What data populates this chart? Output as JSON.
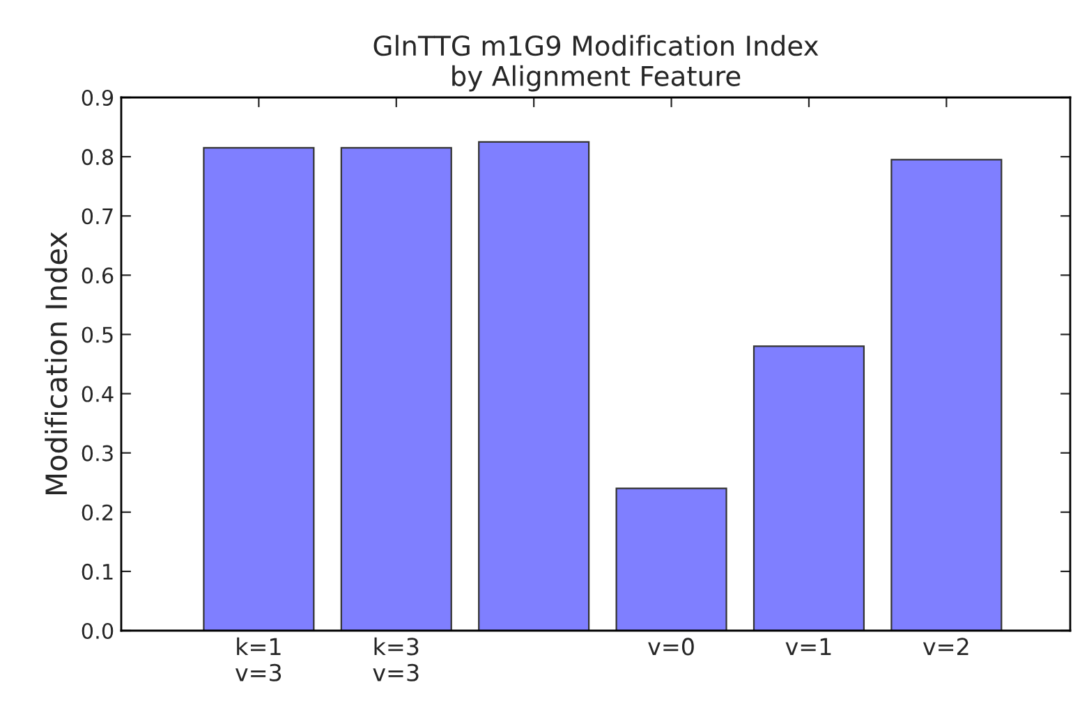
{
  "chart_data": {
    "type": "bar",
    "title": "GlnTTG m1G9 Modification Index\nby Alignment Feature",
    "ylabel": "Modification Index",
    "categories": [
      "k=1\nv=3",
      "k=3\nv=3",
      null,
      "v=0",
      "v=1",
      "v=2"
    ],
    "values": [
      0.815,
      0.815,
      0.825,
      0.24,
      0.48,
      0.795
    ],
    "color": "#7f7fff",
    "ylim": [
      0,
      0.9
    ],
    "yticks": [
      {
        "value": 0,
        "label": "0.0"
      },
      0.1,
      0.2,
      0.3,
      0.4,
      0.5,
      0.6,
      0.7,
      0.8,
      0.9
    ],
    "grid": false,
    "legend": false
  }
}
